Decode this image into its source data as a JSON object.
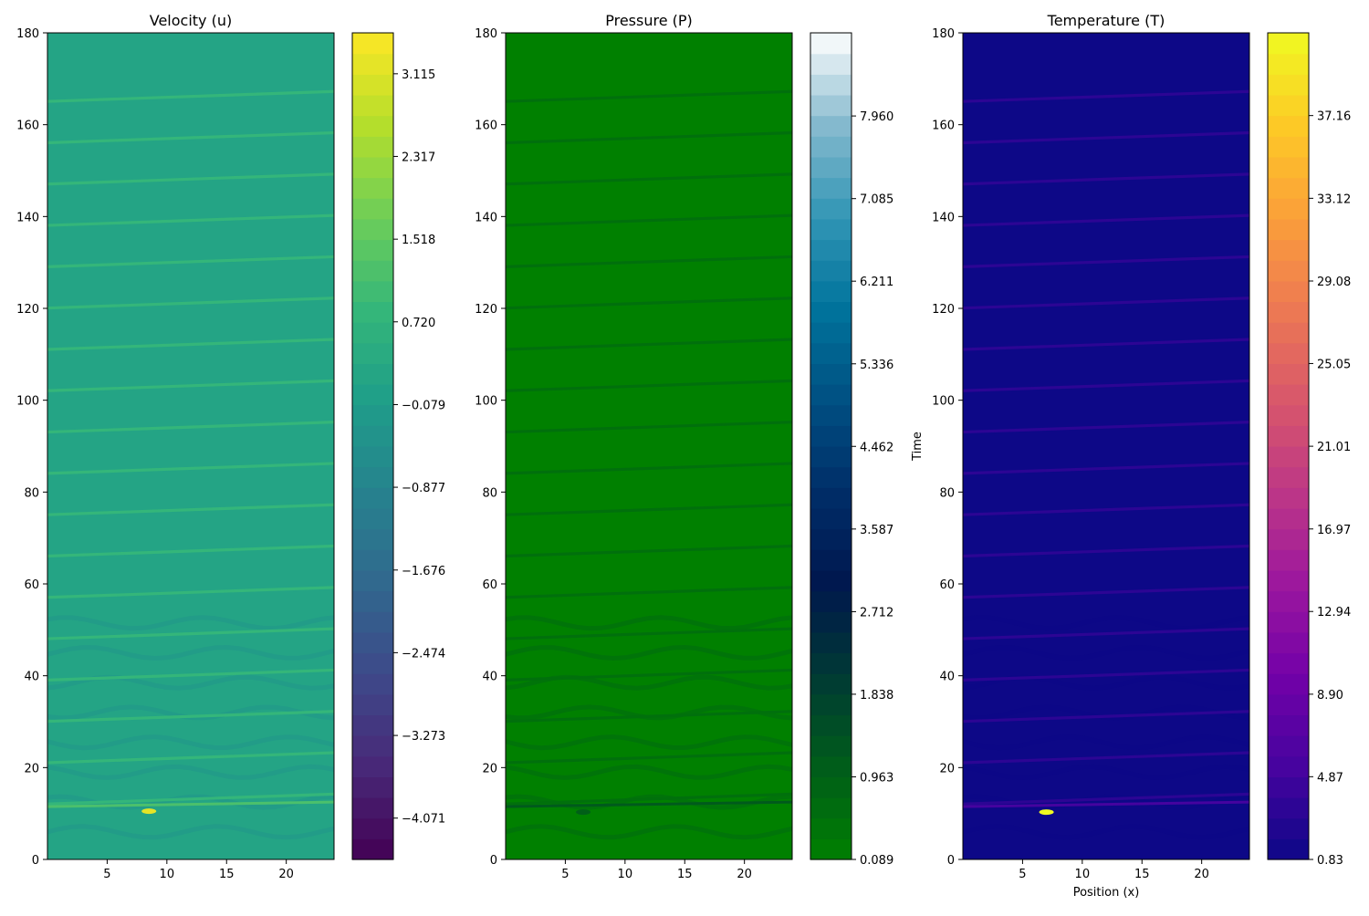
{
  "chart_data": [
    {
      "type": "heatmap",
      "title": "Velocity (u)",
      "xlabel": "",
      "ylabel": "",
      "xlim": [
        0,
        24
      ],
      "ylim": [
        0,
        180
      ],
      "xticks": [
        "5",
        "10",
        "15",
        "20"
      ],
      "yticks": [
        "0",
        "20",
        "40",
        "60",
        "80",
        "100",
        "120",
        "140",
        "160",
        "180"
      ],
      "colormap": "viridis",
      "background_level": 0.58,
      "stripe_level": 0.66,
      "dark_level": 0.52,
      "hotspot": {
        "x": 8.5,
        "t": 10.5,
        "value": 3.2
      },
      "colorbar": {
        "range": [
          -4.47,
          3.51
        ],
        "ticks": [
          "−4.071",
          "−3.273",
          "−2.474",
          "−1.676",
          "−0.877",
          "−0.079",
          "0.720",
          "1.518",
          "2.317",
          "3.115"
        ]
      }
    },
    {
      "type": "heatmap",
      "title": "Pressure (P)",
      "xlabel": "",
      "ylabel": "Time",
      "xlim": [
        0,
        24
      ],
      "ylim": [
        0,
        180
      ],
      "xticks": [
        "5",
        "10",
        "15",
        "20"
      ],
      "yticks": [
        "0",
        "20",
        "40",
        "60",
        "80",
        "100",
        "120",
        "140",
        "160",
        "180"
      ],
      "colormap": "ocean",
      "background_level": 0.0,
      "stripe_level": 0.05,
      "dark_level": 0.07,
      "hotspot": {
        "x": 6.5,
        "t": 10.3,
        "value": 1.0
      },
      "colorbar": {
        "range": [
          0.089,
          8.84
        ],
        "ticks": [
          "0.089",
          "0.963",
          "1.838",
          "2.712",
          "3.587",
          "4.462",
          "5.336",
          "6.211",
          "7.085",
          "7.960"
        ]
      }
    },
    {
      "type": "heatmap",
      "title": "Temperature (T)",
      "xlabel": "Position (x)",
      "ylabel": "",
      "xlim": [
        0,
        24
      ],
      "ylim": [
        0,
        180
      ],
      "xticks": [
        "5",
        "10",
        "15",
        "20"
      ],
      "yticks": [
        "0",
        "20",
        "40",
        "60",
        "80",
        "100",
        "120",
        "140",
        "160",
        "180"
      ],
      "colormap": "plasma",
      "background_level": 0.0,
      "stripe_level": 0.06,
      "dark_level": 0.0,
      "hotspot": {
        "x": 7.0,
        "t": 10.3,
        "value": 41.2
      },
      "colorbar": {
        "range": [
          0.83,
          41.2
        ],
        "ticks": [
          "0.83",
          "4.87",
          "8.90",
          "12.94",
          "16.97",
          "21.01",
          "25.05",
          "29.08",
          "33.12",
          "37.16"
        ]
      }
    }
  ]
}
